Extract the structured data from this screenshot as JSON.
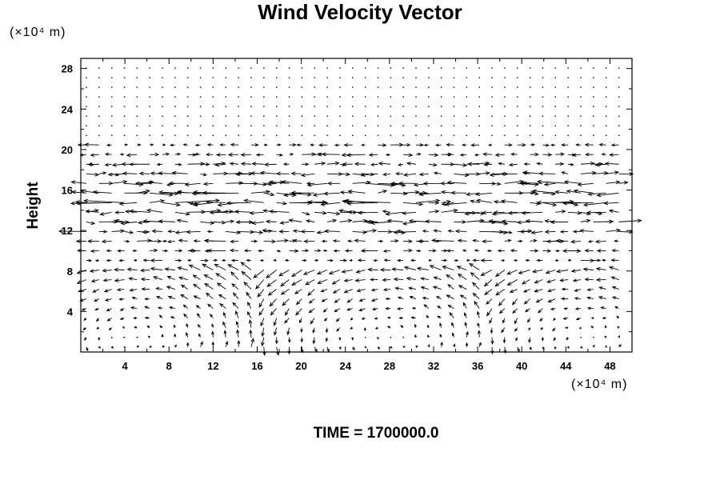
{
  "chart_data": {
    "type": "vector-field",
    "title": "Wind Velocity Vector",
    "ylabel": "Height",
    "x_unit_label": "(×10⁴ m)",
    "y_unit_label": "(×10⁴ m)",
    "xlim": [
      0,
      50
    ],
    "ylim": [
      0,
      29
    ],
    "x_ticks": [
      4,
      8,
      12,
      16,
      20,
      24,
      28,
      32,
      36,
      40,
      44,
      48
    ],
    "y_ticks": [
      4,
      8,
      12,
      16,
      20,
      24,
      28
    ],
    "grid": false,
    "legend": "none",
    "annotation": "TIME = 1700000.0",
    "arrow_color": "#000000"
  }
}
